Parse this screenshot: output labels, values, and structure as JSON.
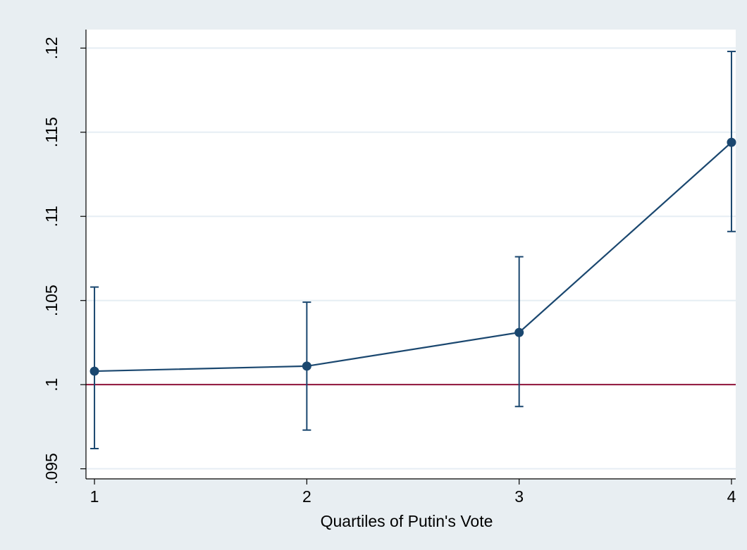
{
  "chart_data": {
    "type": "line",
    "title": "",
    "xlabel": "Quartiles of Putin's Vote",
    "ylabel": "",
    "x": [
      1,
      2,
      3,
      4
    ],
    "x_ticks": [
      "1",
      "2",
      "3",
      "4"
    ],
    "xlim": [
      0.96,
      4.02
    ],
    "y_ticks": [
      ".095",
      ".1",
      ".105",
      ".11",
      ".115",
      ".12"
    ],
    "y_tick_values": [
      0.095,
      0.1,
      0.105,
      0.11,
      0.115,
      0.12
    ],
    "ylim": [
      0.0944,
      0.1211
    ],
    "grid": true,
    "legend": "none",
    "series": [
      {
        "values": [
          0.1008,
          0.1011,
          0.1031,
          0.1144
        ],
        "ci_low": [
          0.0962,
          0.0973,
          0.0987,
          0.1091
        ],
        "ci_high": [
          0.1058,
          0.1049,
          0.1076,
          0.1198
        ]
      }
    ],
    "reference_line": {
      "y": 0.1
    },
    "colors": {
      "series": "#1a476f",
      "reference": "#90143a",
      "plot_bg": "#ffffff",
      "outer_bg": "#e8eef2",
      "grid": "#e6eef4"
    }
  }
}
